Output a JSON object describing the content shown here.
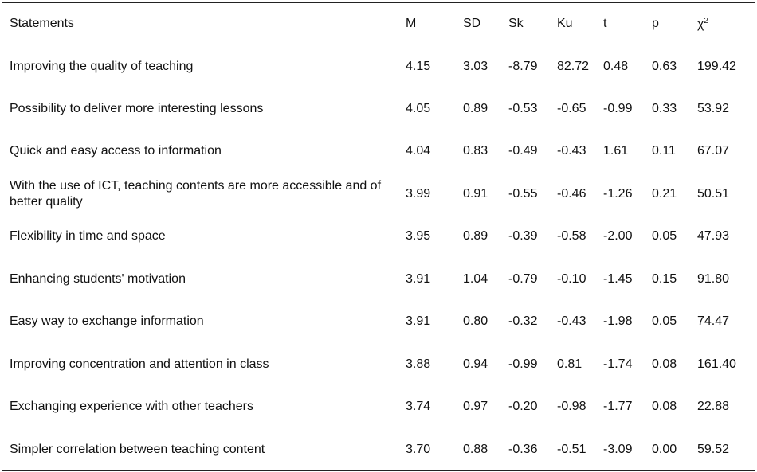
{
  "table": {
    "headers": {
      "statements": "Statements",
      "m": "M",
      "sd": "SD",
      "sk": "Sk",
      "ku": "Ku",
      "t": "t",
      "p": "p",
      "chi": "χ",
      "chi_sup": "2"
    },
    "rows": [
      {
        "statement": "Improving the quality of teaching",
        "m": "4.15",
        "sd": "3.03",
        "sk": "-8.79",
        "ku": "82.72",
        "t": "0.48",
        "p": "0.63",
        "chi": "199.42"
      },
      {
        "statement": "Possibility to deliver more interesting lessons",
        "m": "4.05",
        "sd": "0.89",
        "sk": "-0.53",
        "ku": "-0.65",
        "t": "-0.99",
        "p": "0.33",
        "chi": "53.92"
      },
      {
        "statement": "Quick and easy access to information",
        "m": "4.04",
        "sd": "0.83",
        "sk": "-0.49",
        "ku": "-0.43",
        "t": "1.61",
        "p": "0.11",
        "chi": "67.07"
      },
      {
        "statement": "With the use of ICT, teaching contents are more accessible and of better quality",
        "m": "3.99",
        "sd": "0.91",
        "sk": "-0.55",
        "ku": "-0.46",
        "t": "-1.26",
        "p": "0.21",
        "chi": "50.51"
      },
      {
        "statement": "Flexibility in time and space",
        "m": "3.95",
        "sd": "0.89",
        "sk": "-0.39",
        "ku": "-0.58",
        "t": "-2.00",
        "p": "0.05",
        "chi": "47.93"
      },
      {
        "statement": "Enhancing students' motivation",
        "m": "3.91",
        "sd": "1.04",
        "sk": "-0.79",
        "ku": "-0.10",
        "t": "-1.45",
        "p": "0.15",
        "chi": "91.80"
      },
      {
        "statement": "Easy way to exchange information",
        "m": "3.91",
        "sd": "0.80",
        "sk": "-0.32",
        "ku": "-0.43",
        "t": "-1.98",
        "p": "0.05",
        "chi": "74.47"
      },
      {
        "statement": "Improving concentration and attention in class",
        "m": "3.88",
        "sd": "0.94",
        "sk": "-0.99",
        "ku": "0.81",
        "t": "-1.74",
        "p": "0.08",
        "chi": "161.40"
      },
      {
        "statement": "Exchanging experience with other teachers",
        "m": "3.74",
        "sd": "0.97",
        "sk": "-0.20",
        "ku": "-0.98",
        "t": "-1.77",
        "p": "0.08",
        "chi": "22.88"
      },
      {
        "statement": "Simpler correlation between teaching content",
        "m": "3.70",
        "sd": "0.88",
        "sk": "-0.36",
        "ku": "-0.51",
        "t": "-3.09",
        "p": "0.00",
        "chi": "59.52"
      }
    ]
  }
}
